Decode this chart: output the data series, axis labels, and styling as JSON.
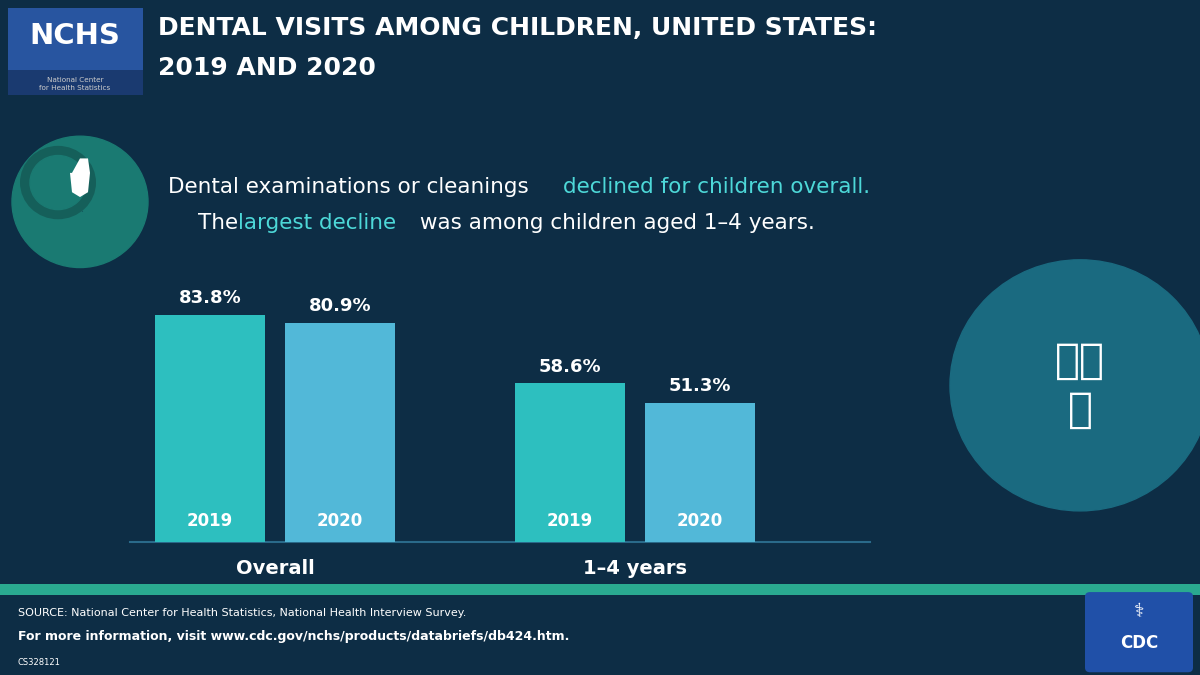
{
  "title_line1": "DENTAL VISITS AMONG CHILDREN, UNITED STATES:",
  "title_line2": "2019 AND 2020",
  "header_bg": "#1b7a6a",
  "body_bg": "#0d2d45",
  "footer_bg": "#1b7a6a",
  "nchs_box_bg_top": "#2855a0",
  "nchs_box_bg_bot": "#1a3a70",
  "groups": [
    "Overall",
    "1–4 years"
  ],
  "years": [
    "2019",
    "2020"
  ],
  "values": [
    [
      83.8,
      80.9
    ],
    [
      58.6,
      51.3
    ]
  ],
  "labels": [
    [
      "83.8%",
      "80.9%"
    ],
    [
      "58.6%",
      "51.3%"
    ]
  ],
  "bar_color_2019_overall": "#2dbfbf",
  "bar_color_2020_overall": "#52b8d8",
  "bar_color_2019_group2": "#2dbfbf",
  "bar_color_2020_group2": "#52b8d8",
  "source_line1": "SOURCE: National Center for Health Statistics, National Health Interview Survey.",
  "source_line2": "For more information, visit www.cdc.gov/nchs/products/databriefs/db424.htm.",
  "source_small": "CS328121",
  "teal_highlight": "#4dd8d8",
  "white": "#ffffff",
  "footer_thin_line": "#2a9a8a"
}
